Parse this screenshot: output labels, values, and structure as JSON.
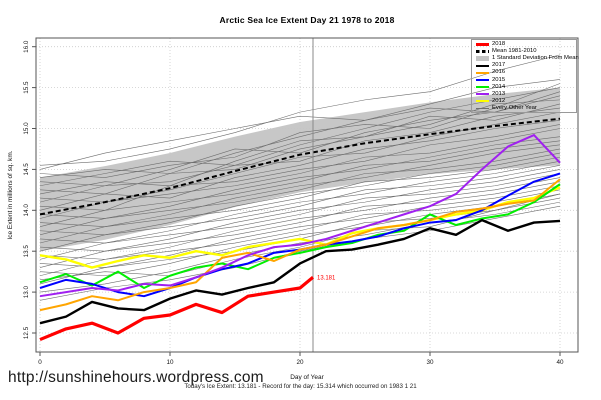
{
  "page": {
    "footer_url": "http://sunshinehours.wordpress.com",
    "footer_note": "Today's Ice Extent: 13.181  - Record for the day: 15.314 which occurred on 1983 1 21"
  },
  "chart_data": {
    "type": "line",
    "title": "Arctic Sea Ice Extent Day 21 1978 to 2018",
    "xlabel": "Day of Year",
    "ylabel": "Ice Extent in millions of sq. km.",
    "xlim": [
      0,
      40
    ],
    "ylim": [
      12.25,
      16.1
    ],
    "xticks": [
      0,
      10,
      20,
      30,
      40
    ],
    "yticks": [
      "12.5",
      "13.0",
      "13.5",
      "14.0",
      "14.5",
      "15.0",
      "15.5",
      "16.0"
    ],
    "grid": true,
    "legend_position": "top-right",
    "day_marker": {
      "day": 21,
      "value": 13.181,
      "label": "13.181",
      "label_color": "#ff0000"
    },
    "band": {
      "name": "1 Standard Deviation From Mean",
      "color": "#c4c4c4",
      "x": [
        0,
        5,
        10,
        15,
        20,
        25,
        30,
        35,
        40
      ],
      "upper": [
        14.4,
        14.54,
        14.7,
        14.9,
        15.08,
        15.2,
        15.32,
        15.42,
        15.5
      ],
      "lower": [
        13.5,
        13.64,
        13.82,
        14.04,
        14.22,
        14.34,
        14.44,
        14.5,
        14.55
      ]
    },
    "mean": {
      "name": "Mean 1981-2010",
      "color": "#000000",
      "style": "dashed",
      "x": [
        0,
        5,
        10,
        15,
        20,
        25,
        30,
        35,
        40
      ],
      "values": [
        13.95,
        14.1,
        14.27,
        14.48,
        14.68,
        14.82,
        14.93,
        15.03,
        15.12
      ]
    },
    "series": [
      {
        "name": "2012",
        "color": "#ffff00",
        "width": 2.4,
        "x": [
          0,
          2,
          4,
          6,
          8,
          10,
          12,
          14,
          16,
          18,
          20,
          22,
          24,
          26,
          28,
          30,
          32,
          34,
          36,
          38,
          40
        ],
        "values": [
          13.45,
          13.4,
          13.3,
          13.38,
          13.45,
          13.42,
          13.5,
          13.45,
          13.55,
          13.6,
          13.65,
          13.58,
          13.72,
          13.78,
          13.82,
          13.88,
          13.95,
          14.0,
          14.1,
          14.15,
          14.28
        ]
      },
      {
        "name": "2014",
        "color": "#00ee00",
        "width": 2,
        "x": [
          0,
          2,
          4,
          6,
          8,
          10,
          12,
          14,
          16,
          18,
          20,
          22,
          24,
          26,
          28,
          30,
          32,
          34,
          36,
          38,
          40
        ],
        "values": [
          13.12,
          13.22,
          13.08,
          13.25,
          13.05,
          13.2,
          13.3,
          13.35,
          13.28,
          13.42,
          13.48,
          13.55,
          13.6,
          13.7,
          13.75,
          13.95,
          13.82,
          13.9,
          13.95,
          14.1,
          14.32
        ]
      },
      {
        "name": "2015",
        "color": "#0000ff",
        "width": 2,
        "x": [
          0,
          2,
          4,
          6,
          8,
          10,
          12,
          14,
          16,
          18,
          20,
          22,
          24,
          26,
          28,
          30,
          32,
          34,
          36,
          38,
          40
        ],
        "values": [
          13.05,
          13.15,
          13.1,
          13.0,
          12.95,
          13.05,
          13.18,
          13.28,
          13.35,
          13.48,
          13.52,
          13.58,
          13.62,
          13.68,
          13.78,
          13.85,
          13.88,
          14.0,
          14.18,
          14.35,
          14.45
        ]
      },
      {
        "name": "2016",
        "color": "#ffa500",
        "width": 2,
        "x": [
          0,
          2,
          4,
          6,
          8,
          10,
          12,
          14,
          16,
          18,
          20,
          22,
          24,
          26,
          28,
          30,
          32,
          34,
          36,
          38,
          40
        ],
        "values": [
          12.78,
          12.85,
          12.95,
          12.9,
          13.0,
          13.05,
          13.12,
          13.42,
          13.48,
          13.38,
          13.52,
          13.58,
          13.68,
          13.78,
          13.82,
          13.88,
          13.98,
          14.02,
          14.08,
          14.12,
          14.38
        ]
      },
      {
        "name": "2013",
        "color": "#a020f0",
        "width": 2,
        "x": [
          0,
          2,
          4,
          6,
          8,
          10,
          12,
          14,
          16,
          18,
          20,
          22,
          24,
          26,
          28,
          30,
          32,
          34,
          36,
          38,
          40
        ],
        "values": [
          12.95,
          13.0,
          13.05,
          13.02,
          13.1,
          13.08,
          13.18,
          13.3,
          13.45,
          13.55,
          13.58,
          13.65,
          13.75,
          13.85,
          13.95,
          14.05,
          14.2,
          14.5,
          14.78,
          14.92,
          14.58
        ]
      },
      {
        "name": "2017",
        "color": "#000000",
        "width": 2.4,
        "x": [
          0,
          2,
          4,
          6,
          8,
          10,
          12,
          14,
          16,
          18,
          20,
          22,
          24,
          26,
          28,
          30,
          32,
          34,
          36,
          38,
          40
        ],
        "values": [
          12.62,
          12.7,
          12.88,
          12.8,
          12.78,
          12.92,
          13.02,
          12.97,
          13.05,
          13.12,
          13.35,
          13.5,
          13.52,
          13.58,
          13.65,
          13.78,
          13.7,
          13.88,
          13.75,
          13.85,
          13.87
        ]
      },
      {
        "name": "2018",
        "color": "#ff0000",
        "width": 3.2,
        "x": [
          0,
          2,
          4,
          6,
          8,
          10,
          12,
          14,
          16,
          18,
          20,
          21
        ],
        "values": [
          12.42,
          12.55,
          12.62,
          12.5,
          12.68,
          12.72,
          12.85,
          12.75,
          12.95,
          13.0,
          13.05,
          13.181
        ]
      }
    ],
    "other_years": {
      "name": "Every Other Year",
      "color": "#6e6e6e",
      "width": 0.6,
      "x": [
        0,
        5,
        10,
        15,
        20,
        25,
        30,
        35,
        40
      ],
      "lines": [
        [
          14.5,
          14.7,
          14.85,
          15.0,
          15.15,
          15.1,
          15.25,
          15.2,
          15.4
        ],
        [
          14.55,
          14.6,
          14.75,
          14.95,
          15.2,
          15.35,
          15.45,
          15.7,
          15.9
        ],
        [
          14.4,
          14.5,
          14.45,
          14.7,
          14.9,
          15.1,
          15.3,
          15.5,
          15.6
        ],
        [
          14.3,
          14.45,
          14.6,
          14.55,
          14.8,
          15.0,
          15.2,
          15.35,
          15.5
        ],
        [
          14.35,
          14.3,
          14.5,
          14.75,
          14.7,
          14.95,
          15.1,
          15.2,
          15.45
        ],
        [
          14.2,
          14.35,
          14.3,
          14.6,
          14.85,
          14.9,
          15.05,
          15.3,
          15.35
        ],
        [
          14.25,
          14.2,
          14.45,
          14.5,
          14.75,
          14.9,
          15.15,
          15.1,
          15.3
        ],
        [
          14.1,
          14.3,
          14.35,
          14.55,
          14.6,
          14.85,
          14.95,
          15.15,
          15.25
        ],
        [
          14.15,
          14.1,
          14.25,
          14.45,
          14.65,
          14.7,
          14.9,
          15.05,
          15.2
        ],
        [
          14.0,
          14.2,
          14.15,
          14.4,
          14.55,
          14.75,
          14.85,
          15.0,
          15.1
        ],
        [
          14.05,
          14.0,
          14.3,
          14.35,
          14.5,
          14.6,
          14.8,
          14.9,
          15.05
        ],
        [
          13.9,
          14.1,
          14.2,
          14.3,
          14.45,
          14.65,
          14.7,
          14.85,
          15.0
        ],
        [
          13.95,
          13.9,
          14.05,
          14.25,
          14.4,
          14.5,
          14.65,
          14.8,
          14.9
        ],
        [
          13.8,
          14.0,
          14.1,
          14.2,
          14.35,
          14.55,
          14.6,
          14.75,
          14.85
        ],
        [
          13.85,
          13.8,
          13.95,
          14.15,
          14.3,
          14.4,
          14.55,
          14.7,
          14.8
        ],
        [
          13.7,
          13.9,
          14.0,
          14.1,
          14.25,
          14.45,
          14.5,
          14.6,
          14.75
        ],
        [
          13.75,
          13.7,
          13.85,
          14.05,
          14.2,
          14.3,
          14.45,
          14.55,
          14.7
        ],
        [
          13.6,
          13.8,
          13.9,
          14.0,
          14.15,
          14.35,
          14.4,
          14.5,
          14.65
        ],
        [
          13.65,
          13.6,
          13.75,
          13.95,
          14.1,
          14.2,
          14.35,
          14.45,
          14.6
        ],
        [
          13.5,
          13.7,
          13.8,
          13.9,
          14.05,
          14.25,
          14.3,
          14.4,
          14.55
        ],
        [
          13.55,
          13.5,
          13.65,
          13.85,
          14.0,
          14.1,
          14.25,
          14.35,
          14.5
        ],
        [
          13.4,
          13.6,
          13.7,
          13.8,
          13.95,
          14.15,
          14.2,
          14.3,
          14.45
        ],
        [
          13.45,
          13.4,
          13.55,
          13.75,
          13.9,
          14.0,
          14.15,
          14.25,
          14.4
        ],
        [
          13.3,
          13.5,
          13.6,
          13.7,
          13.85,
          14.05,
          14.1,
          14.2,
          14.35
        ],
        [
          13.35,
          13.3,
          13.45,
          13.65,
          13.8,
          13.9,
          14.05,
          14.15,
          14.3
        ],
        [
          13.2,
          13.4,
          13.5,
          13.6,
          13.75,
          13.95,
          14.0,
          14.1,
          14.25
        ],
        [
          13.25,
          13.2,
          13.35,
          13.55,
          13.7,
          13.8,
          13.95,
          14.05,
          14.2
        ],
        [
          13.1,
          13.3,
          13.4,
          13.5,
          13.65,
          13.85,
          13.9,
          14.0,
          14.15
        ],
        [
          13.0,
          13.1,
          13.25,
          13.45,
          13.6,
          13.7,
          13.85,
          13.95,
          14.1
        ],
        [
          12.9,
          13.05,
          13.15,
          13.3,
          13.5,
          13.65,
          13.75,
          13.9,
          14.05
        ],
        [
          14.45,
          14.4,
          14.55,
          14.65,
          14.95,
          15.05,
          15.0,
          15.25,
          15.55
        ],
        [
          13.15,
          13.25,
          13.2,
          13.4,
          13.55,
          13.75,
          13.8,
          14.0,
          14.2
        ]
      ]
    },
    "legend": [
      {
        "label": "2018",
        "swatch": "thickline",
        "color": "#ff0000"
      },
      {
        "label": "Mean 1981-2010",
        "swatch": "dashed",
        "color": "#000000"
      },
      {
        "label": "1 Standard Deviation From Mean",
        "swatch": "box",
        "color": "#c4c4c4"
      },
      {
        "label": "2017",
        "swatch": "line",
        "color": "#000000"
      },
      {
        "label": "2016",
        "swatch": "line",
        "color": "#ffa500"
      },
      {
        "label": "2015",
        "swatch": "line",
        "color": "#0000ff"
      },
      {
        "label": "2014",
        "swatch": "line",
        "color": "#00ee00"
      },
      {
        "label": "2013",
        "swatch": "line",
        "color": "#a020f0"
      },
      {
        "label": "2012",
        "swatch": "line",
        "color": "#ffff00"
      },
      {
        "label": "Every Other Year",
        "swatch": "thinline",
        "color": "#6e6e6e"
      }
    ]
  }
}
